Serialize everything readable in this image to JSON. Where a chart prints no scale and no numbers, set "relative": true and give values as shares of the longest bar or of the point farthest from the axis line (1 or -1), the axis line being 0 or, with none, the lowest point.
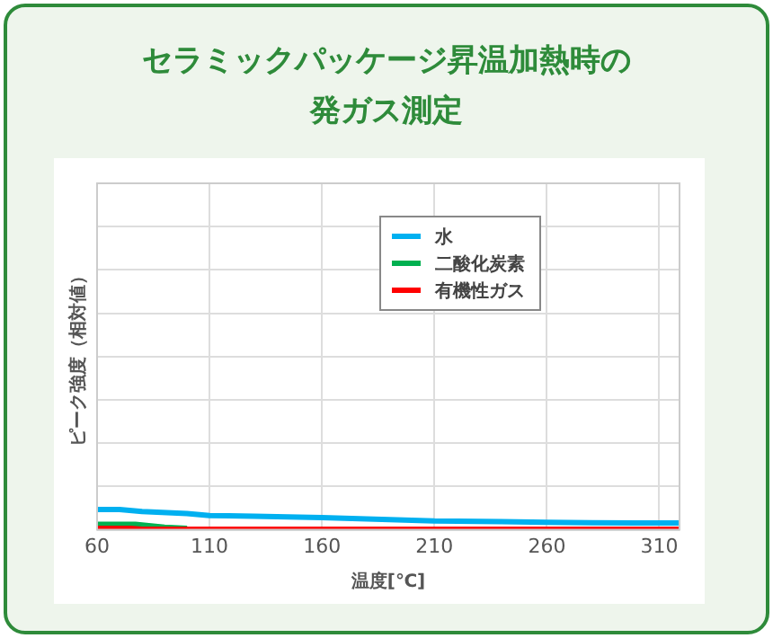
{
  "chart_data": {
    "type": "line",
    "title": "セラミックパッケージ昇温加熱時の発ガス測定",
    "xlabel": "温度[℃]",
    "ylabel": "ピーク強度（相対値）",
    "relative": true,
    "xlim": [
      60,
      319
    ],
    "xticks": [
      60,
      110,
      160,
      210,
      260,
      310
    ],
    "grid": true,
    "legend": "top",
    "marker": "none",
    "line_style": "solid",
    "series": [
      {
        "name": "水",
        "color": "#00b0f0",
        "x": [
          60,
          70,
          80,
          100,
          110,
          130,
          160,
          190,
          210,
          240,
          260,
          280,
          300,
          319
        ],
        "values": [
          1,
          1,
          0.9,
          0.8,
          0.7,
          0.67,
          0.6,
          0.5,
          0.43,
          0.4,
          0.37,
          0.35,
          0.33,
          0.33
        ]
      },
      {
        "name": "二酸化炭素",
        "color": "#00b050",
        "x": [
          60,
          77,
          90,
          100
        ],
        "values": [
          0.27,
          0.27,
          0.13,
          0.07
        ]
      },
      {
        "name": "有機性ガス",
        "color": "#ff0000",
        "x": [
          60,
          75,
          80,
          319
        ],
        "values": [
          0.07,
          0.07,
          0.03,
          0.03
        ]
      }
    ]
  }
}
